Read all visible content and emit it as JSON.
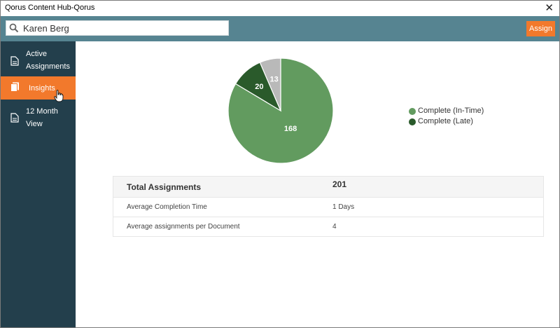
{
  "window": {
    "title": "Qorus Content Hub-Qorus",
    "close_symbol": "✕"
  },
  "toolbar": {
    "search_value": "Karen Berg",
    "assign_label": "Assign",
    "accent_color": "#f2792c",
    "bar_color": "#568491"
  },
  "sidebar": {
    "items": [
      {
        "line1": "Active",
        "line2": "Assignments",
        "icon": "document-icon",
        "active": false
      },
      {
        "line1": "Insights",
        "line2": "",
        "icon": "documents-icon",
        "active": true
      },
      {
        "line1": "12 Month",
        "line2": "View",
        "icon": "document-icon",
        "active": false
      }
    ]
  },
  "chart_data": {
    "type": "pie",
    "slices": [
      {
        "label": "Complete (In-Time)",
        "value": 168,
        "color": "#629b5f"
      },
      {
        "label": "Complete (Late)",
        "value": 20,
        "color": "#2a5a2b"
      },
      {
        "label": "",
        "value": 13,
        "color": "#b9b9b9"
      }
    ],
    "legend_position": "right"
  },
  "legend": [
    {
      "label": "Complete (In-Time)",
      "color": "#629b5f"
    },
    {
      "label": "Complete (Late)",
      "color": "#2a5a2b"
    }
  ],
  "stats": {
    "total_label": "Total Assignments",
    "total_value": "201",
    "rows": [
      {
        "label": "Average Completion Time",
        "value": "1 Days"
      },
      {
        "label": "Average assignments per Document",
        "value": "4"
      }
    ]
  }
}
